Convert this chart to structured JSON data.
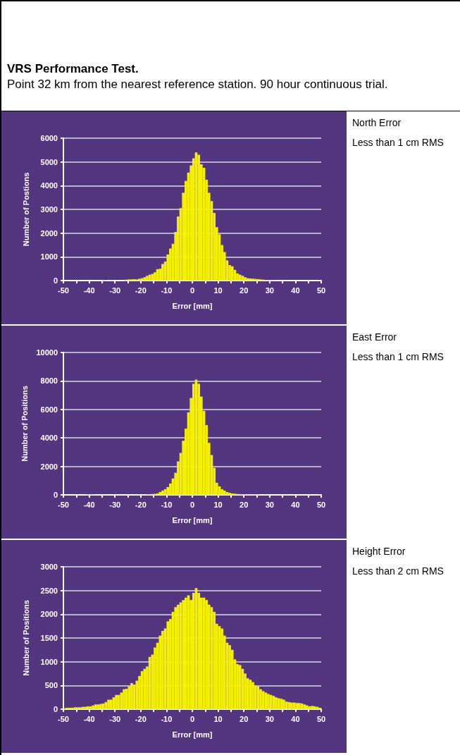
{
  "chart_data": [
    {
      "type": "histogram",
      "title": "VRS Performance Test.",
      "subtitle": "Point 32 km from the nearest reference station. 90 hour continuous trial.",
      "annotations": [
        "North Error",
        "Less than 1 cm RMS"
      ],
      "xlabel": "Error [mm]",
      "ylabel": "Number of Postions",
      "color": "#f5f000",
      "grid": "y",
      "bins": [
        -50,
        -49,
        -48,
        -47,
        -46,
        -45,
        -44,
        -43,
        -42,
        -41,
        -40,
        -39,
        -38,
        -37,
        -36,
        -35,
        -34,
        -33,
        -32,
        -31,
        -30,
        -29,
        -28,
        -27,
        -26,
        -25,
        -24,
        -23,
        -22,
        -21,
        -20,
        -19,
        -18,
        -17,
        -16,
        -15,
        -14,
        -13,
        -12,
        -11,
        -10,
        -9,
        -8,
        -7,
        -6,
        -5,
        -4,
        -3,
        -2,
        -1,
        0,
        1,
        2,
        3,
        4,
        5,
        6,
        7,
        8,
        9,
        10,
        11,
        12,
        13,
        14,
        15,
        16,
        17,
        18,
        19,
        20,
        21,
        22,
        23,
        24,
        25,
        26,
        27,
        28,
        29,
        30,
        31,
        32,
        33,
        34,
        35,
        36,
        37,
        38,
        39,
        40,
        41,
        42,
        43,
        44,
        45,
        46,
        47,
        48,
        49,
        50
      ],
      "values": [
        0,
        0,
        0,
        0,
        0,
        0,
        0,
        0,
        0,
        0,
        0,
        0,
        0,
        0,
        0,
        20,
        30,
        0,
        30,
        0,
        0,
        0,
        0,
        0,
        40,
        50,
        50,
        60,
        50,
        80,
        100,
        140,
        200,
        250,
        280,
        350,
        480,
        500,
        700,
        800,
        1100,
        1350,
        1550,
        2050,
        2700,
        3050,
        3700,
        4200,
        4550,
        4850,
        5150,
        5400,
        5300,
        4900,
        4750,
        4250,
        3700,
        3350,
        2850,
        2250,
        1950,
        1500,
        1200,
        850,
        650,
        600,
        450,
        300,
        250,
        200,
        140,
        100,
        90,
        80,
        70,
        60,
        50,
        40,
        30,
        30,
        20,
        20,
        20,
        0,
        0,
        0,
        0,
        0,
        0,
        0,
        0,
        0,
        0,
        0,
        0,
        0,
        0,
        0,
        0,
        0
      ],
      "xlim": [
        -50,
        50
      ],
      "xticks": [
        -50,
        {
          "value": -45,
          "label": null
        },
        -40,
        {
          "value": -35,
          "label": null
        },
        -30,
        {
          "value": -25,
          "label": null
        },
        -20,
        {
          "value": -15,
          "label": null
        },
        -10,
        {
          "value": -5,
          "label": null
        },
        0,
        {
          "value": 5,
          "label": null
        },
        10,
        {
          "value": 15,
          "label": null
        },
        20,
        {
          "value": 25,
          "label": null
        },
        30,
        {
          "value": 35,
          "label": null
        },
        40,
        {
          "value": 45,
          "label": null
        },
        50
      ],
      "ylim": [
        0,
        6000
      ],
      "yticks": [
        0,
        1000,
        2000,
        3000,
        4000,
        5000,
        6000
      ]
    },
    {
      "type": "histogram",
      "annotations": [
        "East Error",
        "Less than 1 cm RMS"
      ],
      "xlabel": "Error [mm]",
      "ylabel": "Number of Positions",
      "color": "#f5f000",
      "grid": "y",
      "bins": [
        -50,
        -49,
        -48,
        -47,
        -46,
        -45,
        -44,
        -43,
        -42,
        -41,
        -40,
        -39,
        -38,
        -37,
        -36,
        -35,
        -34,
        -33,
        -32,
        -31,
        -30,
        -29,
        -28,
        -27,
        -26,
        -25,
        -24,
        -23,
        -22,
        -21,
        -20,
        -19,
        -18,
        -17,
        -16,
        -15,
        -14,
        -13,
        -12,
        -11,
        -10,
        -9,
        -8,
        -7,
        -6,
        -5,
        -4,
        -3,
        -2,
        -1,
        0,
        1,
        2,
        3,
        4,
        5,
        6,
        7,
        8,
        9,
        10,
        11,
        12,
        13,
        14,
        15,
        16,
        17,
        18,
        19,
        20,
        21,
        22,
        23,
        24,
        25,
        26,
        27,
        28,
        29,
        30,
        31,
        32,
        33,
        34,
        35,
        36,
        37,
        38,
        39,
        40,
        41,
        42,
        43,
        44,
        45,
        46,
        47,
        48,
        49,
        50
      ],
      "values": [
        0,
        0,
        0,
        0,
        0,
        0,
        0,
        0,
        0,
        50,
        50,
        30,
        0,
        0,
        0,
        0,
        0,
        0,
        0,
        0,
        0,
        0,
        0,
        0,
        0,
        0,
        0,
        0,
        0,
        0,
        0,
        0,
        50,
        50,
        60,
        70,
        100,
        200,
        300,
        400,
        550,
        800,
        1150,
        1550,
        2350,
        2950,
        3800,
        4650,
        5800,
        6800,
        7800,
        8100,
        7800,
        6900,
        5900,
        4900,
        3650,
        2800,
        1900,
        850,
        600,
        400,
        300,
        200,
        150,
        100,
        80,
        60,
        50,
        50,
        40,
        40,
        30,
        30,
        30,
        30,
        0,
        0,
        0,
        0,
        0,
        0,
        0,
        0,
        0,
        0,
        0,
        0,
        0,
        0,
        0,
        0,
        0,
        0,
        0,
        0,
        0,
        0,
        0,
        0
      ],
      "xlim": [
        -50,
        50
      ],
      "xticks": [
        -50,
        {
          "value": -45,
          "label": null
        },
        -40,
        {
          "value": -35,
          "label": null
        },
        -30,
        {
          "value": -25,
          "label": null
        },
        -20,
        {
          "value": -15,
          "label": null
        },
        -10,
        {
          "value": -5,
          "label": null
        },
        0,
        {
          "value": 5,
          "label": null
        },
        10,
        {
          "value": 15,
          "label": null
        },
        20,
        {
          "value": 25,
          "label": null
        },
        30,
        {
          "value": 35,
          "label": null
        },
        40,
        {
          "value": 45,
          "label": null
        },
        50
      ],
      "ylim": [
        0,
        10000
      ],
      "yticks": [
        0,
        2000,
        4000,
        6000,
        8000,
        10000
      ]
    },
    {
      "type": "histogram",
      "annotations": [
        "Height Error",
        "Less than 2 cm RMS"
      ],
      "xlabel": "Error [mm]",
      "ylabel": "Number of Positions",
      "color": "#f5f000",
      "grid": "y",
      "bins": [
        -50,
        -49,
        -48,
        -47,
        -46,
        -45,
        -44,
        -43,
        -42,
        -41,
        -40,
        -39,
        -38,
        -37,
        -36,
        -35,
        -34,
        -33,
        -32,
        -31,
        -30,
        -29,
        -28,
        -27,
        -26,
        -25,
        -24,
        -23,
        -22,
        -21,
        -20,
        -19,
        -18,
        -17,
        -16,
        -15,
        -14,
        -13,
        -12,
        -11,
        -10,
        -9,
        -8,
        -7,
        -6,
        -5,
        -4,
        -3,
        -2,
        -1,
        0,
        1,
        2,
        3,
        4,
        5,
        6,
        7,
        8,
        9,
        10,
        11,
        12,
        13,
        14,
        15,
        16,
        17,
        18,
        19,
        20,
        21,
        22,
        23,
        24,
        25,
        26,
        27,
        28,
        29,
        30,
        31,
        32,
        33,
        34,
        35,
        36,
        37,
        38,
        39,
        40,
        41,
        42,
        43,
        44,
        45,
        46,
        47,
        48,
        49,
        50
      ],
      "values": [
        20,
        30,
        30,
        30,
        40,
        40,
        40,
        50,
        50,
        60,
        60,
        80,
        100,
        100,
        110,
        120,
        150,
        200,
        200,
        250,
        300,
        300,
        350,
        420,
        430,
        480,
        550,
        520,
        600,
        700,
        800,
        850,
        900,
        1100,
        1150,
        1300,
        1400,
        1550,
        1650,
        1700,
        1850,
        1900,
        2050,
        2150,
        2200,
        2250,
        2300,
        2350,
        2400,
        2300,
        2450,
        2550,
        2450,
        2350,
        2350,
        2300,
        2200,
        2150,
        2050,
        1800,
        1750,
        1700,
        1550,
        1400,
        1350,
        1250,
        1050,
        950,
        930,
        850,
        750,
        650,
        620,
        570,
        500,
        480,
        420,
        380,
        350,
        320,
        300,
        280,
        250,
        230,
        220,
        200,
        160,
        150,
        140,
        140,
        130,
        130,
        120,
        100,
        80,
        60,
        70,
        60,
        50,
        30
      ],
      "xlim": [
        -50,
        50
      ],
      "xticks": [
        -50,
        {
          "value": -45,
          "label": null
        },
        -40,
        {
          "value": -35,
          "label": null
        },
        -30,
        {
          "value": -25,
          "label": null
        },
        -20,
        {
          "value": -15,
          "label": null
        },
        -10,
        {
          "value": -5,
          "label": null
        },
        0,
        {
          "value": 5,
          "label": null
        },
        10,
        {
          "value": 15,
          "label": null
        },
        20,
        {
          "value": 25,
          "label": null
        },
        30,
        {
          "value": 35,
          "label": null
        },
        40,
        {
          "value": 45,
          "label": null
        },
        50
      ],
      "ylim": [
        0,
        3000
      ],
      "yticks": [
        0,
        500,
        1000,
        1500,
        2000,
        2500,
        3000
      ]
    }
  ]
}
